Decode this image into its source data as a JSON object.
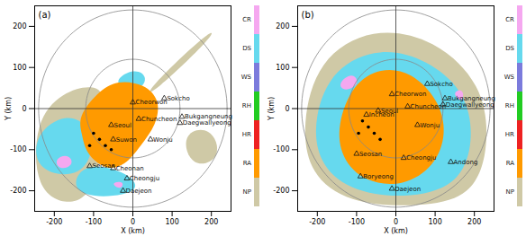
{
  "chart_data": [
    {
      "type": "map",
      "title": "(a)",
      "xlabel": "X (km)",
      "ylabel": "Y (km)",
      "xlim": [
        -250,
        250
      ],
      "ylim": [
        -250,
        250
      ],
      "xticks": [
        -200,
        -100,
        0,
        100,
        200
      ],
      "yticks": [
        -200,
        -100,
        0,
        100,
        200
      ],
      "center": [
        0,
        0
      ],
      "range_rings": [
        120,
        240
      ],
      "classes": [
        {
          "name": "CR",
          "color": "#f5a8f0"
        },
        {
          "name": "DS",
          "color": "#66d9ee"
        },
        {
          "name": "WS",
          "color": "#7b7bdc"
        },
        {
          "name": "RH",
          "color": "#22cc22"
        },
        {
          "name": "HR",
          "color": "#ee2222"
        },
        {
          "name": "RA",
          "color": "#ff9a00"
        },
        {
          "name": "NP",
          "color": "#cfc9a6"
        }
      ],
      "regions": [
        {
          "class": "NP",
          "points": [
            [
              -250,
              -30
            ],
            [
              -180,
              40
            ],
            [
              -100,
              60
            ],
            [
              -60,
              30
            ],
            [
              -90,
              -200
            ],
            [
              -160,
              -240
            ],
            [
              -250,
              -200
            ]
          ]
        },
        {
          "class": "NP",
          "points": [
            [
              120,
              -60
            ],
            [
              200,
              -40
            ],
            [
              230,
              -120
            ],
            [
              150,
              -150
            ]
          ]
        },
        {
          "class": "NP",
          "points": [
            [
              30,
              40
            ],
            [
              200,
              195
            ],
            [
              215,
              185
            ],
            [
              45,
              30
            ]
          ]
        },
        {
          "class": "DS",
          "points": [
            [
              -250,
              -60
            ],
            [
              -170,
              -10
            ],
            [
              -110,
              -40
            ],
            [
              -100,
              -120
            ],
            [
              -150,
              -170
            ],
            [
              -250,
              -150
            ]
          ]
        },
        {
          "class": "DS",
          "points": [
            [
              -130,
              -130
            ],
            [
              -20,
              -150
            ],
            [
              30,
              -200
            ],
            [
              -80,
              -220
            ],
            [
              -160,
              -200
            ]
          ]
        },
        {
          "class": "DS",
          "points": [
            [
              -60,
              60
            ],
            [
              0,
              100
            ],
            [
              40,
              80
            ],
            [
              20,
              40
            ]
          ]
        },
        {
          "class": "CR",
          "points": [
            [
              -200,
              -120
            ],
            [
              -160,
              -110
            ],
            [
              -150,
              -140
            ],
            [
              -190,
              -150
            ]
          ]
        },
        {
          "class": "CR",
          "points": [
            [
              -60,
              -180
            ],
            [
              -20,
              -175
            ],
            [
              -30,
              -200
            ]
          ]
        },
        {
          "class": "RA",
          "points": [
            [
              -140,
              -20
            ],
            [
              -90,
              40
            ],
            [
              -40,
              70
            ],
            [
              30,
              60
            ],
            [
              70,
              20
            ],
            [
              60,
              -40
            ],
            [
              20,
              -90
            ],
            [
              -20,
              -140
            ],
            [
              -70,
              -150
            ],
            [
              -120,
              -110
            ],
            [
              -130,
              -60
            ]
          ]
        }
      ],
      "stations": [
        {
          "name": "Cheorwon",
          "x": 0,
          "y": 15
        },
        {
          "name": "Sokcho",
          "x": 80,
          "y": 25
        },
        {
          "name": "Chuncheon",
          "x": 15,
          "y": -25
        },
        {
          "name": "Seoul",
          "x": -55,
          "y": -40
        },
        {
          "name": "Suwon",
          "x": -50,
          "y": -75
        },
        {
          "name": "Wonju",
          "x": 45,
          "y": -75
        },
        {
          "name": "Bukgangneung",
          "x": 125,
          "y": -20
        },
        {
          "name": "Daegwallyeong",
          "x": 120,
          "y": -35
        },
        {
          "name": "Seosan",
          "x": -110,
          "y": -140
        },
        {
          "name": "Cheonan",
          "x": -50,
          "y": -145
        },
        {
          "name": "Cheongju",
          "x": -15,
          "y": -170
        },
        {
          "name": "Daejeon",
          "x": -25,
          "y": -200
        }
      ],
      "dots": [
        [
          -100,
          -60
        ],
        [
          -85,
          -75
        ],
        [
          -70,
          -90
        ],
        [
          -110,
          -90
        ],
        [
          -55,
          -100
        ]
      ]
    },
    {
      "type": "map",
      "title": "(b)",
      "xlabel": "X (km)",
      "ylabel": "Y (km)",
      "xlim": [
        -250,
        250
      ],
      "ylim": [
        -250,
        250
      ],
      "xticks": [
        -200,
        -100,
        0,
        100,
        200
      ],
      "yticks": [
        -200,
        -100,
        0,
        100,
        200
      ],
      "center": [
        0,
        0
      ],
      "range_rings": [
        120,
        240
      ],
      "classes": [
        {
          "name": "CR",
          "color": "#f5a8f0"
        },
        {
          "name": "DS",
          "color": "#66d9ee"
        },
        {
          "name": "WS",
          "color": "#7b7bdc"
        },
        {
          "name": "RH",
          "color": "#22cc22"
        },
        {
          "name": "HR",
          "color": "#ee2222"
        },
        {
          "name": "RA",
          "color": "#ff9a00"
        },
        {
          "name": "NP",
          "color": "#cfc9a6"
        }
      ],
      "regions": [
        {
          "class": "NP",
          "points": [
            [
              -240,
              -40
            ],
            [
              -200,
              120
            ],
            [
              -60,
              200
            ],
            [
              100,
              170
            ],
            [
              220,
              60
            ],
            [
              240,
              -80
            ],
            [
              200,
              -220
            ],
            [
              40,
              -240
            ],
            [
              -120,
              -230
            ],
            [
              -220,
              -160
            ]
          ]
        },
        {
          "class": "DS",
          "points": [
            [
              -210,
              -20
            ],
            [
              -160,
              100
            ],
            [
              -40,
              150
            ],
            [
              80,
              120
            ],
            [
              180,
              40
            ],
            [
              200,
              -80
            ],
            [
              160,
              -190
            ],
            [
              20,
              -220
            ],
            [
              -120,
              -200
            ],
            [
              -200,
              -130
            ]
          ]
        },
        {
          "class": "CR",
          "points": [
            [
              -150,
              60
            ],
            [
              -110,
              90
            ],
            [
              -90,
              60
            ],
            [
              -130,
              40
            ]
          ]
        },
        {
          "class": "CR",
          "points": [
            [
              140,
              40
            ],
            [
              175,
              50
            ],
            [
              170,
              10
            ]
          ]
        },
        {
          "class": "RA",
          "points": [
            [
              -150,
              -40
            ],
            [
              -110,
              60
            ],
            [
              -40,
              100
            ],
            [
              40,
              90
            ],
            [
              110,
              20
            ],
            [
              130,
              -60
            ],
            [
              100,
              -140
            ],
            [
              20,
              -190
            ],
            [
              -80,
              -180
            ],
            [
              -140,
              -120
            ]
          ]
        }
      ],
      "stations": [
        {
          "name": "Sokcho",
          "x": 80,
          "y": 60
        },
        {
          "name": "Cheorwon",
          "x": -10,
          "y": 35
        },
        {
          "name": "Chuncheon",
          "x": 30,
          "y": 5
        },
        {
          "name": "Seoul",
          "x": -45,
          "y": -5
        },
        {
          "name": "Incheon",
          "x": -75,
          "y": -15
        },
        {
          "name": "Wonju",
          "x": 55,
          "y": -40
        },
        {
          "name": "Bukgangneung",
          "x": 125,
          "y": 25
        },
        {
          "name": "Daegwallyeong",
          "x": 120,
          "y": 10
        },
        {
          "name": "Seosan",
          "x": -100,
          "y": -110
        },
        {
          "name": "Cheongju",
          "x": 20,
          "y": -120
        },
        {
          "name": "Andong",
          "x": 140,
          "y": -130
        },
        {
          "name": "Boryeong",
          "x": -90,
          "y": -165
        },
        {
          "name": "Daejeon",
          "x": -10,
          "y": -195
        }
      ],
      "dots": [
        [
          -85,
          -30
        ],
        [
          -70,
          -45
        ],
        [
          -55,
          -60
        ],
        [
          -95,
          -60
        ],
        [
          -40,
          -75
        ]
      ]
    }
  ]
}
